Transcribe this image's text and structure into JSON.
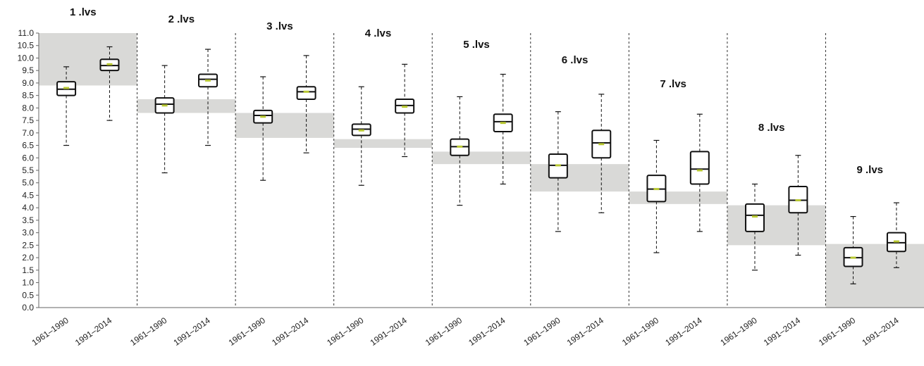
{
  "chart_data": {
    "type": "boxplot",
    "title": "",
    "xlabel": "",
    "ylabel": "",
    "ylim": [
      0,
      11
    ],
    "y_ticks": [
      "0.0",
      "0.5",
      "1.0",
      "1.5",
      "2.0",
      "2.5",
      "3.0",
      "3.5",
      "4.0",
      "4.5",
      "5.0",
      "5.5",
      "6.0",
      "6.5",
      "7.0",
      "7.5",
      "8.0",
      "8.5",
      "9.0",
      "9.5",
      "10.0",
      "10.5",
      "11.0"
    ],
    "grid": false,
    "legend": "none",
    "colors": {
      "box_stroke": "#111111",
      "band": "#d9d9d7",
      "mean_marker": "#b8c832",
      "separator": "#333333"
    },
    "groups": [
      {
        "label": "1 .lvs",
        "band": [
          8.9,
          11.0
        ],
        "boxes": [
          {
            "period": "1961–1990",
            "min": 6.5,
            "q1": 8.5,
            "median": 8.75,
            "q3": 9.05,
            "max": 9.65,
            "mean": 8.8
          },
          {
            "period": "1991–2014",
            "min": 7.5,
            "q1": 9.5,
            "median": 9.7,
            "q3": 9.95,
            "max": 10.45,
            "mean": 9.75
          }
        ]
      },
      {
        "label": "2 .lvs",
        "band": [
          7.8,
          8.35
        ],
        "boxes": [
          {
            "period": "1961–1990",
            "min": 5.4,
            "q1": 7.8,
            "median": 8.15,
            "q3": 8.4,
            "max": 9.7,
            "mean": 8.1
          },
          {
            "period": "1991–2014",
            "min": 6.5,
            "q1": 8.85,
            "median": 9.15,
            "q3": 9.35,
            "max": 10.35,
            "mean": 9.1
          }
        ]
      },
      {
        "label": "3 .lvs",
        "band": [
          6.8,
          7.8
        ],
        "boxes": [
          {
            "period": "1961–1990",
            "min": 5.1,
            "q1": 7.4,
            "median": 7.7,
            "q3": 7.9,
            "max": 9.25,
            "mean": 7.65
          },
          {
            "period": "1991–2014",
            "min": 6.2,
            "q1": 8.35,
            "median": 8.65,
            "q3": 8.85,
            "max": 10.1,
            "mean": 8.65
          }
        ]
      },
      {
        "label": "4 .lvs",
        "band": [
          6.4,
          6.75
        ],
        "boxes": [
          {
            "period": "1961–1990",
            "min": 4.9,
            "q1": 6.9,
            "median": 7.15,
            "q3": 7.35,
            "max": 8.85,
            "mean": 7.1
          },
          {
            "period": "1991–2014",
            "min": 6.05,
            "q1": 7.8,
            "median": 8.1,
            "q3": 8.35,
            "max": 9.75,
            "mean": 8.05
          }
        ]
      },
      {
        "label": "5 .lvs",
        "band": [
          5.75,
          6.25
        ],
        "boxes": [
          {
            "period": "1961–1990",
            "min": 4.1,
            "q1": 6.1,
            "median": 6.45,
            "q3": 6.75,
            "max": 8.45,
            "mean": 6.45
          },
          {
            "period": "1991–2014",
            "min": 4.95,
            "q1": 7.05,
            "median": 7.45,
            "q3": 7.75,
            "max": 9.35,
            "mean": 7.4
          }
        ]
      },
      {
        "label": "6 .lvs",
        "band": [
          4.65,
          5.75
        ],
        "boxes": [
          {
            "period": "1961–1990",
            "min": 3.05,
            "q1": 5.2,
            "median": 5.7,
            "q3": 6.15,
            "max": 7.85,
            "mean": 5.7
          },
          {
            "period": "1991–2014",
            "min": 3.8,
            "q1": 6.0,
            "median": 6.6,
            "q3": 7.1,
            "max": 8.55,
            "mean": 6.55
          }
        ]
      },
      {
        "label": "7 .lvs",
        "band": [
          4.15,
          4.65
        ],
        "boxes": [
          {
            "period": "1961–1990",
            "min": 2.2,
            "q1": 4.25,
            "median": 4.75,
            "q3": 5.3,
            "max": 6.7,
            "mean": 4.75
          },
          {
            "period": "1991–2014",
            "min": 3.05,
            "q1": 4.95,
            "median": 5.55,
            "q3": 6.25,
            "max": 7.75,
            "mean": 5.5
          }
        ]
      },
      {
        "label": "8 .lvs",
        "band": [
          2.5,
          4.1
        ],
        "boxes": [
          {
            "period": "1961–1990",
            "min": 1.5,
            "q1": 3.05,
            "median": 3.7,
            "q3": 4.15,
            "max": 4.95,
            "mean": 3.65
          },
          {
            "period": "1991–2014",
            "min": 2.1,
            "q1": 3.8,
            "median": 4.3,
            "q3": 4.85,
            "max": 6.1,
            "mean": 4.3
          }
        ]
      },
      {
        "label": "9 .lvs",
        "band": [
          0.0,
          2.55
        ],
        "boxes": [
          {
            "period": "1961–1990",
            "min": 0.95,
            "q1": 1.65,
            "median": 2.0,
            "q3": 2.4,
            "max": 3.65,
            "mean": 2.0
          },
          {
            "period": "1991–2014",
            "min": 1.6,
            "q1": 2.25,
            "median": 2.6,
            "q3": 3.0,
            "max": 4.2,
            "mean": 2.65
          }
        ]
      }
    ]
  }
}
